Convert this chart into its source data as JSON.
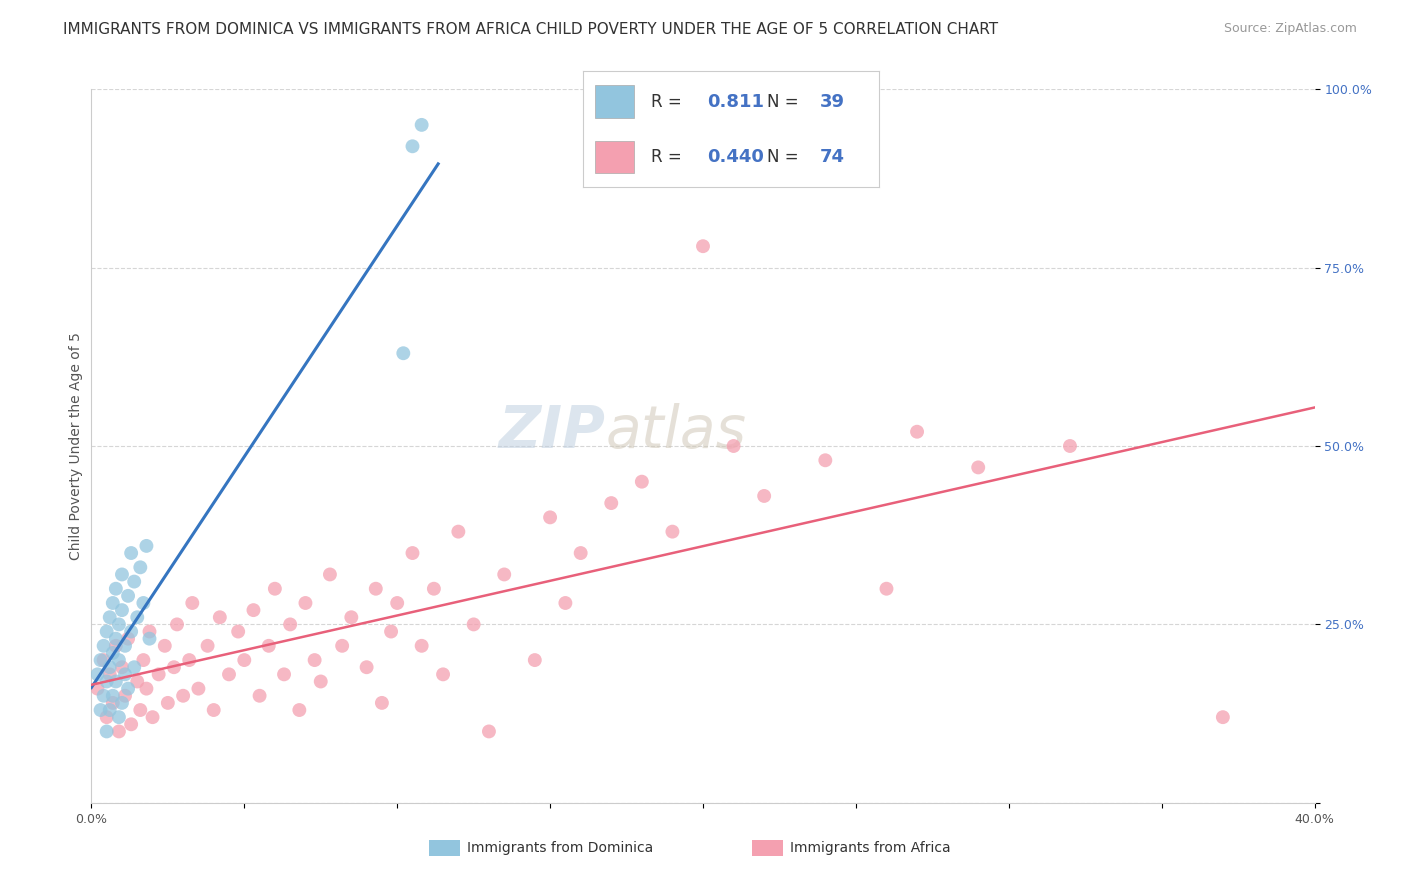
{
  "title": "IMMIGRANTS FROM DOMINICA VS IMMIGRANTS FROM AFRICA CHILD POVERTY UNDER THE AGE OF 5 CORRELATION CHART",
  "source": "Source: ZipAtlas.com",
  "ylabel": "Child Poverty Under the Age of 5",
  "xlim": [
    0.0,
    0.4
  ],
  "ylim": [
    0.0,
    1.0
  ],
  "ytick_values": [
    0.0,
    0.25,
    0.5,
    0.75,
    1.0
  ],
  "ytick_labels": [
    "",
    "25.0%",
    "50.0%",
    "75.0%",
    "100.0%"
  ],
  "xtick_values": [
    0.0,
    0.05,
    0.1,
    0.15,
    0.2,
    0.25,
    0.3,
    0.35,
    0.4
  ],
  "blue_R": "0.811",
  "blue_N": "39",
  "pink_R": "0.440",
  "pink_N": "74",
  "blue_color": "#92c5de",
  "pink_color": "#f4a0b0",
  "blue_line_color": "#3575c0",
  "pink_line_color": "#e8607a",
  "legend_blue_label": "Immigrants from Dominica",
  "legend_pink_label": "Immigrants from Africa",
  "background_color": "#ffffff",
  "grid_color": "#cccccc",
  "title_fontsize": 11,
  "source_fontsize": 9,
  "axis_label_fontsize": 10,
  "tick_fontsize": 9,
  "watermark_zip_color": "#c0d0e0",
  "watermark_atlas_color": "#d0c8b8",
  "blue_scatter_x": [
    0.002,
    0.003,
    0.003,
    0.004,
    0.004,
    0.005,
    0.005,
    0.005,
    0.006,
    0.006,
    0.006,
    0.007,
    0.007,
    0.007,
    0.008,
    0.008,
    0.008,
    0.009,
    0.009,
    0.009,
    0.01,
    0.01,
    0.01,
    0.011,
    0.011,
    0.012,
    0.012,
    0.013,
    0.013,
    0.014,
    0.014,
    0.015,
    0.016,
    0.017,
    0.018,
    0.019,
    0.102,
    0.105,
    0.108
  ],
  "blue_scatter_y": [
    0.18,
    0.13,
    0.2,
    0.15,
    0.22,
    0.17,
    0.24,
    0.1,
    0.19,
    0.26,
    0.13,
    0.21,
    0.28,
    0.15,
    0.23,
    0.3,
    0.17,
    0.25,
    0.12,
    0.2,
    0.27,
    0.14,
    0.32,
    0.22,
    0.18,
    0.29,
    0.16,
    0.35,
    0.24,
    0.31,
    0.19,
    0.26,
    0.33,
    0.28,
    0.36,
    0.23,
    0.63,
    0.92,
    0.95
  ],
  "pink_scatter_x": [
    0.002,
    0.004,
    0.005,
    0.006,
    0.007,
    0.008,
    0.009,
    0.01,
    0.011,
    0.012,
    0.013,
    0.015,
    0.016,
    0.017,
    0.018,
    0.019,
    0.02,
    0.022,
    0.024,
    0.025,
    0.027,
    0.028,
    0.03,
    0.032,
    0.033,
    0.035,
    0.038,
    0.04,
    0.042,
    0.045,
    0.048,
    0.05,
    0.053,
    0.055,
    0.058,
    0.06,
    0.063,
    0.065,
    0.068,
    0.07,
    0.073,
    0.075,
    0.078,
    0.082,
    0.085,
    0.09,
    0.093,
    0.095,
    0.098,
    0.1,
    0.105,
    0.108,
    0.112,
    0.115,
    0.12,
    0.125,
    0.13,
    0.135,
    0.145,
    0.15,
    0.155,
    0.16,
    0.17,
    0.18,
    0.19,
    0.2,
    0.21,
    0.22,
    0.24,
    0.26,
    0.27,
    0.29,
    0.32,
    0.37
  ],
  "pink_scatter_y": [
    0.16,
    0.2,
    0.12,
    0.18,
    0.14,
    0.22,
    0.1,
    0.19,
    0.15,
    0.23,
    0.11,
    0.17,
    0.13,
    0.2,
    0.16,
    0.24,
    0.12,
    0.18,
    0.22,
    0.14,
    0.19,
    0.25,
    0.15,
    0.2,
    0.28,
    0.16,
    0.22,
    0.13,
    0.26,
    0.18,
    0.24,
    0.2,
    0.27,
    0.15,
    0.22,
    0.3,
    0.18,
    0.25,
    0.13,
    0.28,
    0.2,
    0.17,
    0.32,
    0.22,
    0.26,
    0.19,
    0.3,
    0.14,
    0.24,
    0.28,
    0.35,
    0.22,
    0.3,
    0.18,
    0.38,
    0.25,
    0.1,
    0.32,
    0.2,
    0.4,
    0.28,
    0.35,
    0.42,
    0.45,
    0.38,
    0.78,
    0.5,
    0.43,
    0.48,
    0.3,
    0.52,
    0.47,
    0.5,
    0.12
  ]
}
